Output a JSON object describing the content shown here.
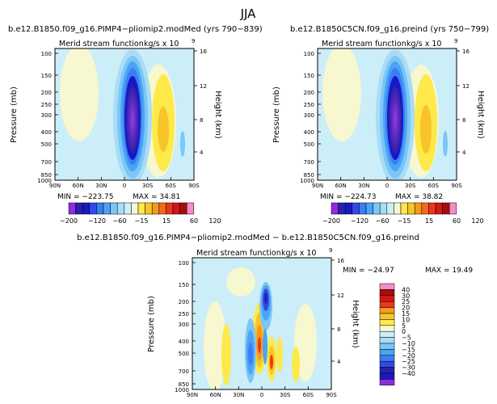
{
  "figure": {
    "title": "JJA",
    "diff_title": "b.e12.B1850.f09_g16.PIMP4−pliomip2.modMed  −  b.e12.B1850C5CN.f09_g16.preind"
  },
  "chart_data": [
    {
      "type": "heatmap",
      "title": "b.e12.B1850.f09_g16.PIMP4−pliomip2.modMed  (yrs 790−839)",
      "subtitle_left": "Merid stream function",
      "subtitle_right": "kg/s x 10",
      "subtitle_exp": "9",
      "ylabel": "Pressure (mb)",
      "ylabel_right": "Height (km)",
      "x_ticks": [
        "90N",
        "60N",
        "30N",
        "0",
        "30S",
        "60S",
        "90S"
      ],
      "y_ticks": [
        "100",
        "150",
        "200",
        "250",
        "300",
        "400",
        "500",
        "700",
        "850",
        "1000"
      ],
      "height_ticks": [
        "16",
        "12",
        "8",
        "4"
      ],
      "min_label": "MIN = −223.75",
      "max_label": "MAX = 34.81",
      "min": -223.75,
      "max": 34.81,
      "colorbar_labels": [
        "−200",
        "−120",
        "−60",
        "−15",
        "15",
        "60",
        "120"
      ]
    },
    {
      "type": "heatmap",
      "title": "b.e12.B1850C5CN.f09_g16.preind  (yrs 750−799)",
      "subtitle_left": "Merid stream function",
      "subtitle_right": "kg/s x 10",
      "subtitle_exp": "9",
      "ylabel": "Pressure (mb)",
      "ylabel_right": "Height (km)",
      "x_ticks": [
        "90N",
        "60N",
        "30N",
        "0",
        "30S",
        "60S",
        "90S"
      ],
      "y_ticks": [
        "100",
        "150",
        "200",
        "250",
        "300",
        "400",
        "500",
        "700",
        "850",
        "1000"
      ],
      "height_ticks": [
        "16",
        "12",
        "8",
        "4"
      ],
      "min_label": "MIN = −224.73",
      "max_label": "MAX = 38.82",
      "min": -224.73,
      "max": 38.82,
      "colorbar_labels": [
        "−200",
        "−120",
        "−60",
        "−15",
        "15",
        "60",
        "120"
      ]
    },
    {
      "type": "heatmap",
      "title": "b.e12.B1850.f09_g16.PIMP4−pliomip2.modMed  −  b.e12.B1850C5CN.f09_g16.preind",
      "subtitle_left": "Merid stream function",
      "subtitle_right": "kg/s x 10",
      "subtitle_exp": "9",
      "ylabel": "Pressure (mb)",
      "ylabel_right": "Height (km)",
      "x_ticks": [
        "90N",
        "60N",
        "30N",
        "0",
        "30S",
        "60S",
        "90S"
      ],
      "y_ticks": [
        "100",
        "150",
        "200",
        "250",
        "300",
        "400",
        "500",
        "700",
        "850",
        "1000"
      ],
      "height_ticks": [
        "16",
        "12",
        "8",
        "4"
      ],
      "min_label": "MIN = −24.97",
      "max_label": "MAX = 19.49",
      "min": -24.97,
      "max": 19.49,
      "colorbar_labels": [
        "40",
        "30",
        "25",
        "20",
        "15",
        "10",
        "5",
        "0",
        "−5",
        "−10",
        "−15",
        "−20",
        "−25",
        "−30",
        "−40"
      ]
    }
  ],
  "colors": {
    "top_scale": [
      "#8c2de0",
      "#2a21a8",
      "#1818c8",
      "#3548e6",
      "#3b7ef3",
      "#49a4f5",
      "#7cc5f7",
      "#a9dcf5",
      "#cbeef9",
      "#f7f7d0",
      "#fde94a",
      "#f8c42a",
      "#f49a1f",
      "#f06a1c",
      "#e8381b",
      "#d41616",
      "#a80c0c",
      "#f58cc8"
    ],
    "diff_scale": [
      "#f58cc8",
      "#a80c0c",
      "#d41616",
      "#e8381b",
      "#f49a1f",
      "#f8c42a",
      "#fde94a",
      "#f7f7d0",
      "#cbeef9",
      "#a9dcf5",
      "#7cc5f7",
      "#49a4f5",
      "#3b7ef3",
      "#3548e6",
      "#2a21a8",
      "#1818c8",
      "#8c2de0"
    ]
  }
}
